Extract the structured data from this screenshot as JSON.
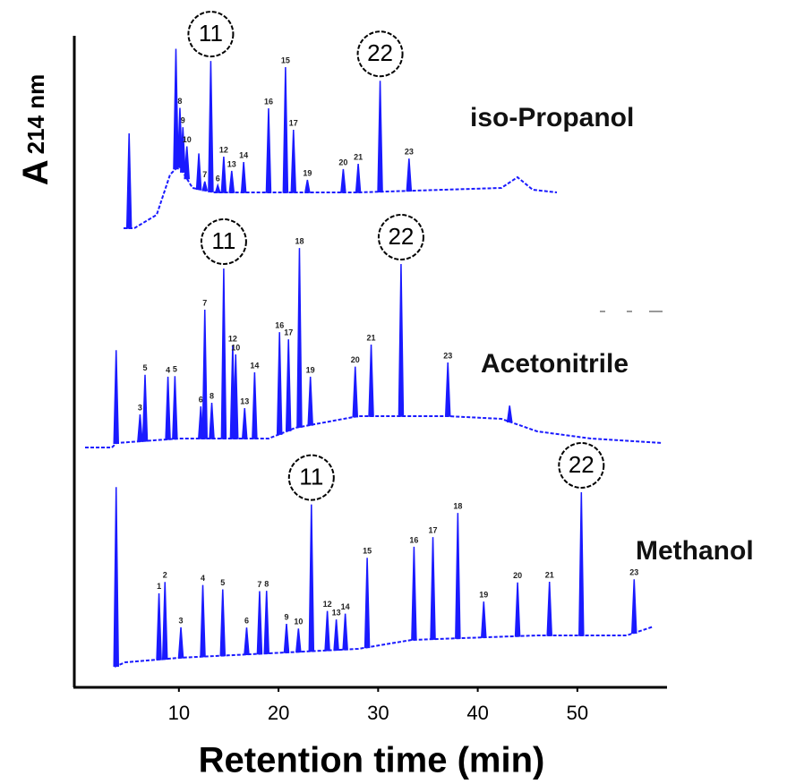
{
  "chart_data": {
    "type": "chromatogram",
    "x_label": "Retention time (min)",
    "y_label": "A",
    "y_label_sub": "214 nm",
    "xlim": [
      -0.5,
      59
    ],
    "xticks": [
      10,
      20,
      30,
      40,
      50
    ],
    "ylim": [
      0,
      100
    ],
    "series": [
      {
        "name": "iso-Propanol",
        "color": "#1a1aff",
        "x": [
          5.0,
          9.7,
          10.1,
          10.4,
          10.8,
          12.0,
          12.6,
          13.2,
          13.9,
          14.5,
          15.3,
          16.5,
          19.0,
          20.7,
          21.5,
          22.9,
          26.5,
          28.0,
          30.2,
          33.1
        ],
        "values": [
          53,
          67,
          33,
          25,
          18,
          20,
          5,
          73,
          4,
          20,
          12,
          17,
          47,
          70,
          35,
          7,
          13,
          16,
          62,
          18
        ],
        "labels": [
          null,
          null,
          "8",
          "9",
          "10",
          null,
          "7",
          null,
          "6",
          "12",
          "13",
          "14",
          "16",
          "15",
          "17",
          "19",
          "20",
          "21",
          null,
          "23"
        ],
        "annotations": [
          {
            "text": "11",
            "x": 13.2
          },
          {
            "text": "22",
            "x": 30.2
          }
        ]
      },
      {
        "name": "Acetonitrile",
        "color": "#1a1aff",
        "x": [
          3.7,
          6.1,
          6.6,
          8.9,
          9.6,
          12.2,
          12.6,
          13.3,
          14.5,
          15.4,
          15.7,
          16.6,
          17.6,
          20.1,
          21.0,
          22.1,
          23.2,
          27.7,
          29.3,
          32.3,
          37.0,
          43.2
        ],
        "values": [
          52,
          15,
          37,
          35,
          35,
          18,
          72,
          20,
          95,
          52,
          47,
          17,
          37,
          57,
          51,
          100,
          27,
          28,
          40,
          85,
          30,
          9
        ],
        "labels": [
          null,
          "3",
          "5",
          "4",
          "5",
          "6",
          "7",
          "8",
          null,
          "12",
          "10",
          "13",
          "14",
          "16",
          "17",
          "18",
          "19",
          "20",
          "21",
          null,
          "23",
          null
        ],
        "annotations": [
          {
            "text": "11",
            "x": 14.5
          },
          {
            "text": "22",
            "x": 32.3
          }
        ]
      },
      {
        "name": "Methanol",
        "color": "#1a1aff",
        "x": [
          3.7,
          8.0,
          8.6,
          10.2,
          12.4,
          14.4,
          16.8,
          18.1,
          18.8,
          20.8,
          22.0,
          23.3,
          24.9,
          25.8,
          26.7,
          28.9,
          33.6,
          35.5,
          38.0,
          40.6,
          44.0,
          47.2,
          50.4,
          55.7
        ],
        "values": [
          100,
          37,
          43,
          17,
          40,
          37,
          15,
          35,
          35,
          16,
          13,
          82,
          22,
          17,
          20,
          50,
          52,
          57,
          70,
          20,
          30,
          30,
          80,
          30
        ],
        "labels": [
          null,
          "1",
          "2",
          "3",
          "4",
          "5",
          "6",
          "7",
          "8",
          "9",
          "10",
          null,
          "12",
          "13",
          "14",
          "15",
          "16",
          "17",
          "18",
          "19",
          "20",
          "21",
          null,
          "23"
        ],
        "annotations": [
          {
            "text": "11",
            "x": 23.3
          },
          {
            "text": "22",
            "x": 50.4
          }
        ]
      }
    ]
  }
}
